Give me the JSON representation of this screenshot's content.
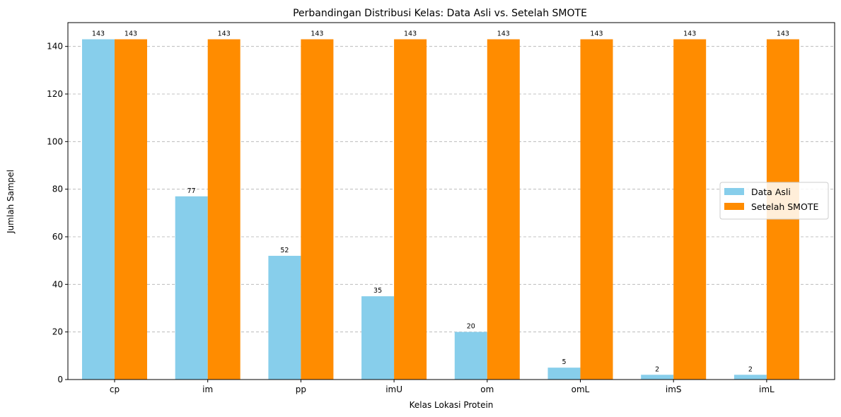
{
  "chart_data": {
    "type": "bar",
    "title": "Perbandingan Distribusi Kelas: Data Asli vs. Setelah SMOTE",
    "xlabel": "Kelas Lokasi Protein",
    "ylabel": "Jumlah Sampel",
    "categories": [
      "cp",
      "im",
      "pp",
      "imU",
      "om",
      "omL",
      "imS",
      "imL"
    ],
    "series": [
      {
        "name": "Data Asli",
        "color": "#87CEEB",
        "values": [
          143,
          77,
          52,
          35,
          20,
          5,
          2,
          2
        ]
      },
      {
        "name": "Setelah SMOTE",
        "color": "#FF8C00",
        "values": [
          143,
          143,
          143,
          143,
          143,
          143,
          143,
          143
        ]
      }
    ],
    "ylim": [
      0,
      150
    ],
    "yticks": [
      0,
      20,
      40,
      60,
      80,
      100,
      120,
      140
    ],
    "grid": "y-dashed",
    "legend_position": "center-right",
    "data_labels": true
  }
}
